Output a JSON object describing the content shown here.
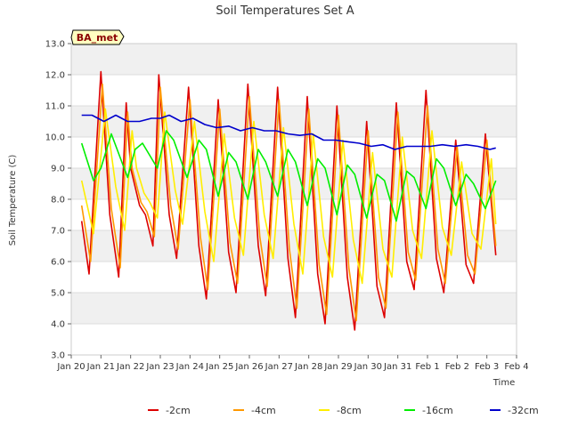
{
  "chart_data": {
    "type": "line",
    "title": "Soil Temperatures Set A",
    "xlabel": "Time",
    "ylabel": "Soil Temperature (C)",
    "station_badge": "BA_met",
    "ylim": [
      3.0,
      13.0
    ],
    "y_ticks": [
      "3.0",
      "4.0",
      "5.0",
      "6.0",
      "7.0",
      "8.0",
      "9.0",
      "10.0",
      "11.0",
      "12.0",
      "13.0"
    ],
    "xlim": [
      0,
      15
    ],
    "x_ticks": [
      "Jan 20",
      "Jan 21",
      "Jan 22",
      "Jan 23",
      "Jan 24",
      "Jan 25",
      "Jan 26",
      "Jan 27",
      "Jan 28",
      "Jan 29",
      "Jan 30",
      "Jan 31",
      "Feb 1",
      "Feb 2",
      "Feb 3",
      "Feb 4"
    ],
    "grid": "horizontal bands",
    "legend_position": "bottom",
    "series": [
      {
        "name": "-2cm",
        "color": "#dd0000",
        "x": [
          0.35,
          0.6,
          1.0,
          1.3,
          1.6,
          1.85,
          2.0,
          2.3,
          2.5,
          2.75,
          2.95,
          3.3,
          3.55,
          3.95,
          4.3,
          4.55,
          4.95,
          5.3,
          5.55,
          5.95,
          6.3,
          6.55,
          6.95,
          7.3,
          7.55,
          7.95,
          8.3,
          8.55,
          8.95,
          9.3,
          9.55,
          9.95,
          10.3,
          10.55,
          10.95,
          11.3,
          11.55,
          11.95,
          12.3,
          12.55,
          12.95,
          13.3,
          13.55,
          13.95,
          14.3
        ],
        "y": [
          7.3,
          5.6,
          12.1,
          7.5,
          5.5,
          11.1,
          9.0,
          7.8,
          7.5,
          6.5,
          12.0,
          7.5,
          6.1,
          11.6,
          6.5,
          4.8,
          11.2,
          6.3,
          5.0,
          11.7,
          6.5,
          4.9,
          11.6,
          6.1,
          4.2,
          11.3,
          5.6,
          4.0,
          11.0,
          5.5,
          3.8,
          10.5,
          5.2,
          4.2,
          11.1,
          6.0,
          5.1,
          11.5,
          6.1,
          5.0,
          9.9,
          5.9,
          5.3,
          10.1,
          6.2
        ]
      },
      {
        "name": "-4cm",
        "color": "#ff9900",
        "x": [
          0.35,
          0.65,
          1.05,
          1.35,
          1.65,
          1.9,
          2.05,
          2.35,
          2.55,
          2.8,
          3.0,
          3.35,
          3.6,
          4.0,
          4.35,
          4.6,
          5.0,
          5.35,
          5.6,
          6.0,
          6.35,
          6.6,
          7.0,
          7.35,
          7.6,
          8.0,
          8.35,
          8.6,
          9.0,
          9.35,
          9.6,
          10.0,
          10.35,
          10.6,
          11.0,
          11.35,
          11.6,
          12.0,
          12.35,
          12.6,
          13.0,
          13.35,
          13.6,
          14.0,
          14.3
        ],
        "y": [
          7.8,
          6.0,
          11.7,
          7.7,
          5.8,
          10.8,
          9.0,
          7.9,
          7.6,
          6.8,
          11.6,
          7.8,
          6.4,
          11.2,
          6.8,
          5.1,
          10.9,
          6.6,
          5.3,
          11.3,
          6.8,
          5.2,
          11.2,
          6.4,
          4.5,
          10.9,
          5.9,
          4.3,
          10.7,
          5.8,
          4.1,
          10.2,
          5.5,
          4.5,
          10.8,
          6.3,
          5.4,
          11.0,
          6.4,
          5.3,
          9.7,
          6.2,
          5.6,
          9.9,
          6.5
        ]
      },
      {
        "name": "-8cm",
        "color": "#ffee00",
        "x": [
          0.35,
          0.75,
          1.15,
          1.5,
          1.8,
          2.05,
          2.2,
          2.45,
          2.65,
          2.9,
          3.15,
          3.5,
          3.75,
          4.15,
          4.5,
          4.8,
          5.15,
          5.5,
          5.8,
          6.15,
          6.5,
          6.8,
          7.15,
          7.5,
          7.8,
          8.15,
          8.5,
          8.8,
          9.15,
          9.5,
          9.8,
          10.15,
          10.5,
          10.8,
          11.15,
          11.5,
          11.8,
          12.15,
          12.5,
          12.8,
          13.15,
          13.5,
          13.8,
          14.15,
          14.3
        ],
        "y": [
          8.6,
          6.9,
          10.9,
          8.4,
          7.0,
          10.2,
          9.0,
          8.2,
          7.9,
          7.4,
          10.8,
          8.3,
          7.2,
          10.5,
          7.6,
          6.0,
          10.1,
          7.4,
          6.2,
          10.5,
          7.5,
          6.1,
          10.3,
          7.2,
          5.6,
          10.1,
          6.8,
          5.5,
          9.9,
          6.7,
          5.3,
          9.5,
          6.4,
          5.5,
          10.0,
          7.0,
          6.1,
          10.2,
          7.1,
          6.2,
          9.2,
          6.9,
          6.4,
          9.3,
          7.2
        ]
      },
      {
        "name": "-16cm",
        "color": "#00ee00",
        "x": [
          0.35,
          0.75,
          1.0,
          1.35,
          1.9,
          2.15,
          2.4,
          2.9,
          3.2,
          3.45,
          3.9,
          4.3,
          4.55,
          4.95,
          5.3,
          5.55,
          5.95,
          6.3,
          6.55,
          6.95,
          7.3,
          7.55,
          7.95,
          8.3,
          8.55,
          8.95,
          9.3,
          9.55,
          9.95,
          10.3,
          10.55,
          10.95,
          11.3,
          11.55,
          11.95,
          12.3,
          12.55,
          12.95,
          13.3,
          13.55,
          13.95,
          14.3
        ],
        "y": [
          9.8,
          8.6,
          9.0,
          10.1,
          8.7,
          9.6,
          9.8,
          9.0,
          10.2,
          9.9,
          8.7,
          9.9,
          9.6,
          8.1,
          9.5,
          9.2,
          8.0,
          9.6,
          9.2,
          8.1,
          9.6,
          9.2,
          7.8,
          9.3,
          9.0,
          7.5,
          9.1,
          8.8,
          7.4,
          8.8,
          8.6,
          7.3,
          8.9,
          8.7,
          7.7,
          9.3,
          9.0,
          7.8,
          8.8,
          8.5,
          7.7,
          8.6
        ]
      },
      {
        "name": "-32cm",
        "color": "#0000cc",
        "x": [
          0.35,
          0.7,
          1.1,
          1.5,
          1.9,
          2.3,
          2.7,
          3.0,
          3.3,
          3.7,
          4.1,
          4.5,
          4.9,
          5.3,
          5.7,
          6.1,
          6.5,
          6.9,
          7.3,
          7.7,
          8.1,
          8.5,
          8.9,
          9.3,
          9.7,
          10.1,
          10.5,
          10.9,
          11.3,
          11.7,
          12.1,
          12.5,
          12.9,
          13.3,
          13.7,
          14.1,
          14.3
        ],
        "y": [
          10.7,
          10.7,
          10.5,
          10.7,
          10.5,
          10.5,
          10.6,
          10.6,
          10.7,
          10.5,
          10.6,
          10.4,
          10.3,
          10.35,
          10.2,
          10.3,
          10.2,
          10.2,
          10.1,
          10.05,
          10.1,
          9.9,
          9.9,
          9.85,
          9.8,
          9.7,
          9.75,
          9.6,
          9.7,
          9.7,
          9.7,
          9.75,
          9.7,
          9.75,
          9.7,
          9.6,
          9.65
        ]
      }
    ]
  }
}
